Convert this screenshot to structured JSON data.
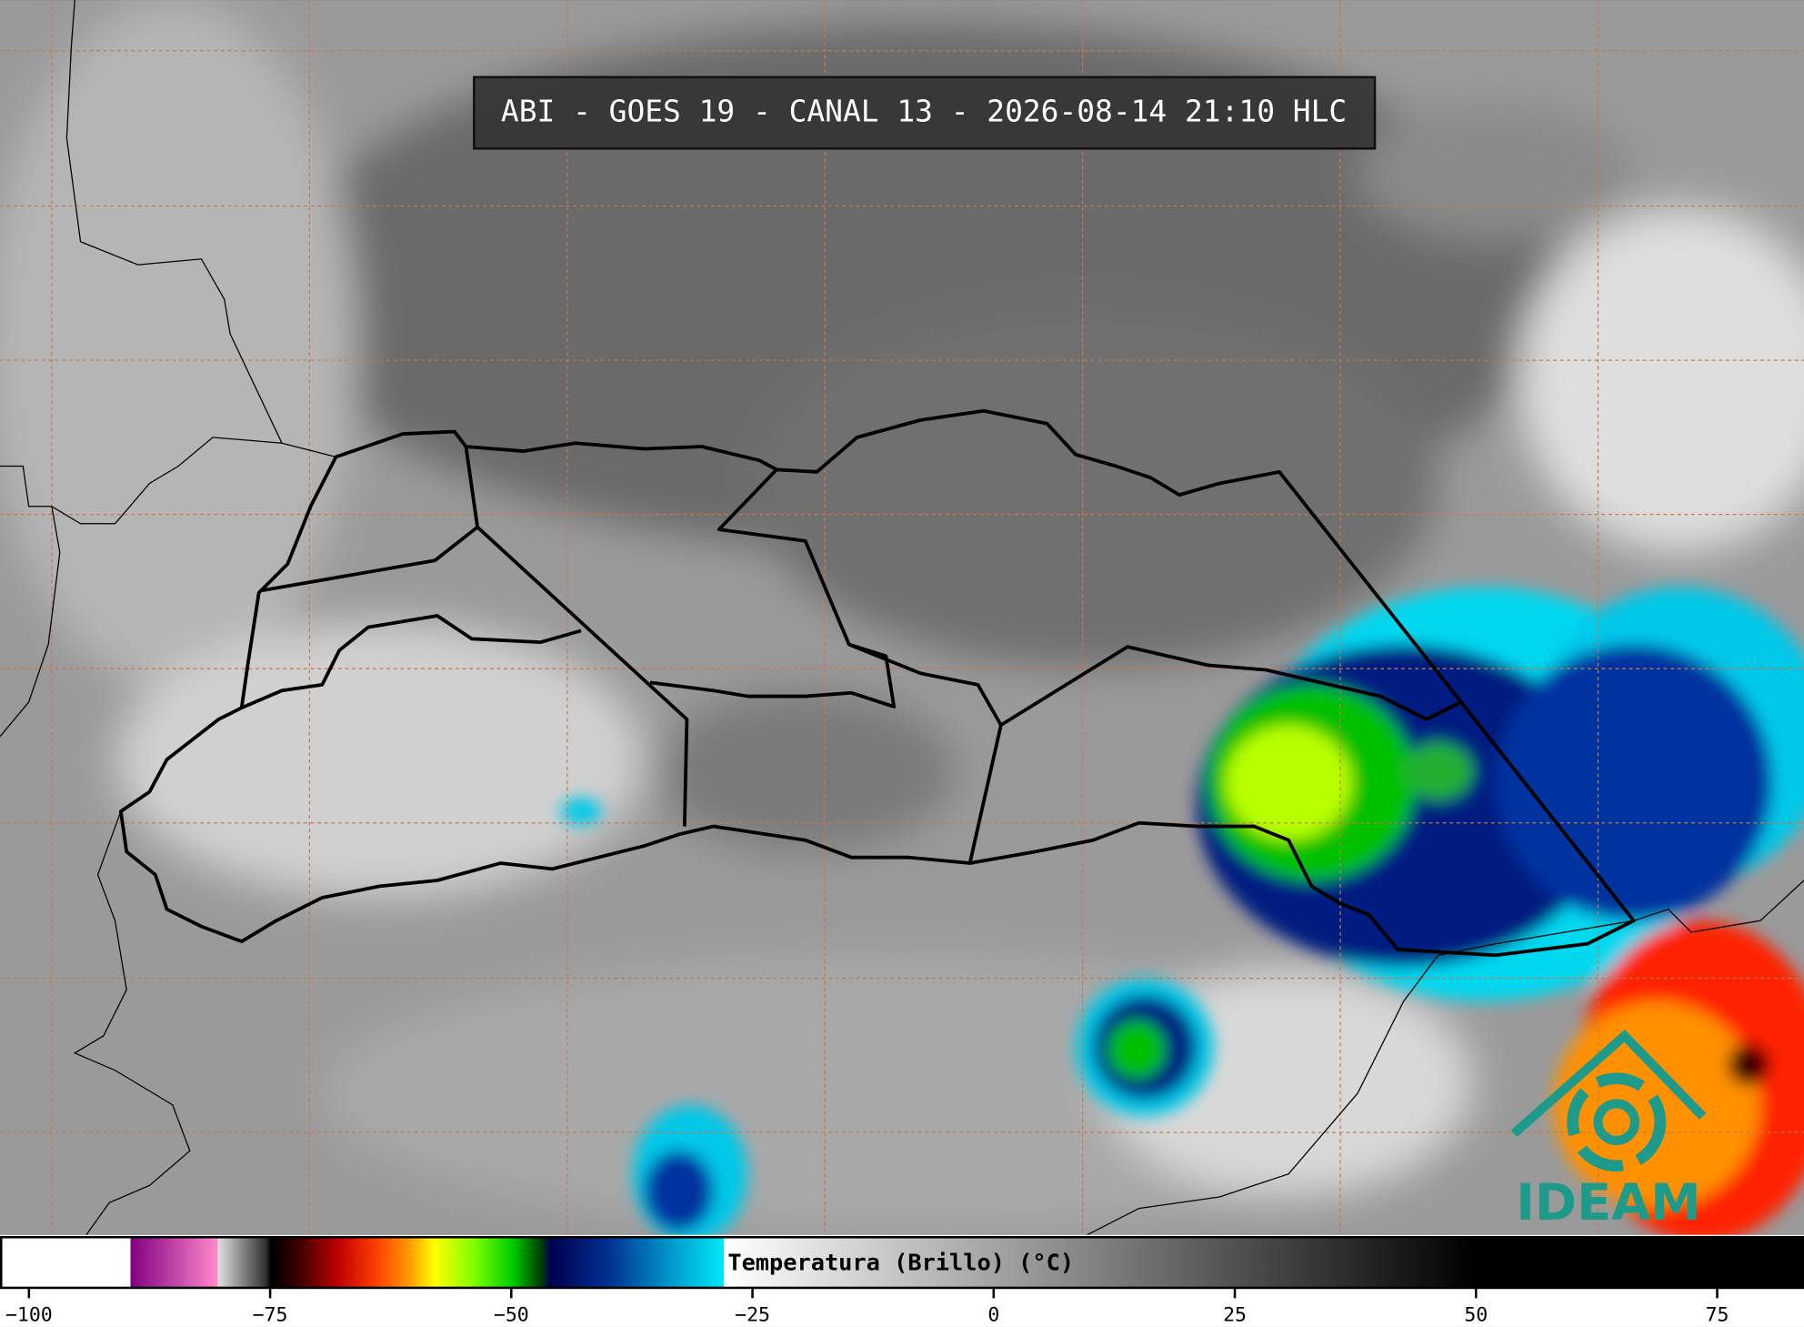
{
  "header": {
    "title": "ABI - GOES 19 - CANAL 13 - 2026-08-14 21:10 HLC"
  },
  "colorbar": {
    "label": "Temperatura (Brillo) (°C)",
    "xlim": [
      -103,
      84
    ],
    "xticks": [
      {
        "value": -100,
        "label": "−100"
      },
      {
        "value": -75,
        "label": "−75"
      },
      {
        "value": -50,
        "label": "−50"
      },
      {
        "value": -25,
        "label": "−25"
      },
      0,
      25,
      50,
      75
    ],
    "stops": [
      {
        "value": -103,
        "color": "#ffffff"
      },
      {
        "value": -89.6,
        "color": "#ffffff"
      },
      {
        "value": -89.6,
        "color": "#800080"
      },
      {
        "value": -80.5,
        "color": "#ff88cc"
      },
      {
        "value": -80.5,
        "color": "#e0e0e0"
      },
      {
        "value": -75.5,
        "color": "#303030"
      },
      {
        "value": -75,
        "color": "#000000"
      },
      {
        "value": -72,
        "color": "#400000"
      },
      {
        "value": -68,
        "color": "#c00000"
      },
      {
        "value": -64,
        "color": "#ff4000"
      },
      {
        "value": -61,
        "color": "#ff9000"
      },
      {
        "value": -58,
        "color": "#ffff00"
      },
      {
        "value": -54,
        "color": "#80ff00"
      },
      {
        "value": -50,
        "color": "#00d000"
      },
      {
        "value": -47,
        "color": "#004000"
      },
      {
        "value": -46,
        "color": "#000050"
      },
      {
        "value": -40,
        "color": "#003090"
      },
      {
        "value": -33,
        "color": "#00a0d0"
      },
      {
        "value": -28,
        "color": "#00e8f8"
      },
      {
        "value": -28,
        "color": "#ffffff"
      },
      {
        "value": 50,
        "color": "#000000"
      },
      {
        "value": 84,
        "color": "#000000"
      }
    ]
  },
  "logo": {
    "text": "IDEAM"
  }
}
